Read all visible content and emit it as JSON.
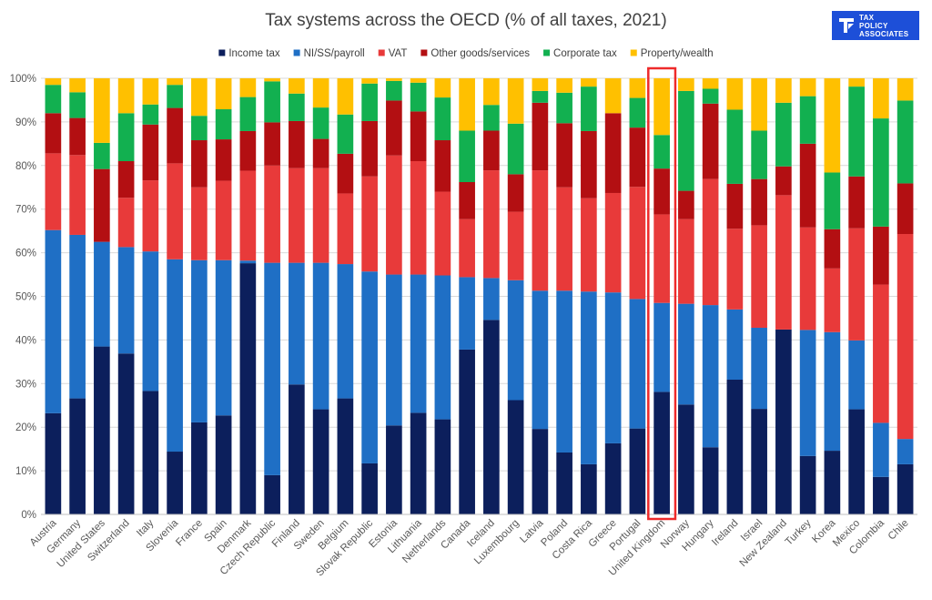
{
  "logo": {
    "line1": "TAX",
    "line2": "POLICY",
    "line3": "ASSOCIATES"
  },
  "colors": {
    "income": "#0c1f5c",
    "ni": "#1f6fc5",
    "vat": "#e83a3a",
    "other": "#b30f12",
    "corporate": "#12b050",
    "property": "#ffc000",
    "highlight": "#ee2a2a"
  },
  "chart_data": {
    "type": "bar",
    "stacked": true,
    "title": "Tax systems across the OECD (% of all taxes, 2021)",
    "xlabel": "",
    "ylabel": "",
    "ylim": [
      0,
      100
    ],
    "yticks": [
      "0%",
      "10%",
      "20%",
      "30%",
      "40%",
      "50%",
      "60%",
      "70%",
      "80%",
      "90%",
      "100%"
    ],
    "grid": true,
    "legend_position": "top",
    "highlighted_category": "United Kingdom",
    "categories": [
      "Austria",
      "Germany",
      "United States",
      "Switzerland",
      "Italy",
      "Slovenia",
      "France",
      "Spain",
      "Denmark",
      "Czech Republic",
      "Finland",
      "Sweden",
      "Belgium",
      "Slovak Republic",
      "Estonia",
      "Lithuania",
      "Netherlands",
      "Canada",
      "Iceland",
      "Luxembourg",
      "Latvia",
      "Poland",
      "Costa Rica",
      "Greece",
      "Portugal",
      "United Kingdom",
      "Norway",
      "Hungary",
      "Ireland",
      "Israel",
      "New Zealand",
      "Turkey",
      "Korea",
      "Mexico",
      "Colombia",
      "Chile"
    ],
    "series": [
      {
        "name": "Income tax",
        "color": "#0c1f5c",
        "values": [
          23.2,
          26.6,
          38.5,
          36.9,
          28.3,
          14.4,
          21.1,
          22.7,
          57.6,
          9.0,
          29.8,
          24.1,
          26.6,
          11.7,
          20.4,
          23.3,
          21.8,
          37.8,
          44.6,
          26.2,
          19.6,
          14.2,
          11.5,
          16.3,
          19.7,
          28.1,
          25.2,
          15.4,
          30.9,
          24.2,
          42.4,
          13.4,
          14.6,
          24.1,
          8.6,
          11.5
        ]
      },
      {
        "name": "NI/SS/payroll",
        "color": "#1f6fc5",
        "values": [
          42.0,
          37.5,
          24.0,
          24.4,
          32.0,
          44.1,
          37.2,
          35.6,
          0.6,
          48.7,
          27.9,
          33.6,
          30.8,
          44.0,
          34.6,
          31.7,
          33.0,
          16.6,
          9.6,
          27.5,
          31.7,
          37.1,
          39.6,
          34.6,
          29.7,
          20.4,
          23.1,
          32.6,
          16.1,
          18.6,
          0.0,
          28.9,
          27.2,
          15.8,
          12.4,
          5.8
        ]
      },
      {
        "name": "VAT",
        "color": "#e83a3a",
        "values": [
          17.6,
          18.3,
          0.0,
          11.3,
          16.3,
          22.0,
          16.7,
          18.2,
          20.6,
          22.3,
          21.7,
          21.7,
          16.2,
          21.8,
          27.3,
          26.0,
          19.2,
          13.3,
          24.7,
          15.7,
          27.6,
          23.7,
          21.4,
          22.8,
          25.7,
          20.3,
          19.4,
          28.9,
          18.5,
          23.5,
          30.8,
          23.5,
          14.6,
          25.7,
          31.7,
          47.0
        ]
      },
      {
        "name": "Other goods/services",
        "color": "#b30f12",
        "values": [
          9.2,
          8.5,
          16.7,
          8.4,
          12.8,
          12.7,
          10.8,
          9.5,
          9.1,
          9.9,
          10.8,
          6.7,
          9.1,
          12.7,
          12.6,
          11.4,
          11.8,
          8.5,
          9.1,
          8.6,
          15.5,
          14.7,
          15.4,
          18.3,
          13.6,
          10.5,
          6.5,
          17.3,
          10.3,
          10.6,
          6.6,
          19.2,
          9.0,
          11.9,
          13.3,
          11.6
        ]
      },
      {
        "name": "Corporate tax",
        "color": "#12b050",
        "values": [
          6.5,
          5.9,
          6.0,
          11.0,
          4.6,
          5.3,
          5.6,
          6.9,
          7.8,
          9.4,
          6.3,
          7.2,
          9.0,
          8.6,
          4.5,
          6.6,
          9.8,
          11.8,
          5.9,
          11.6,
          2.7,
          7.0,
          10.2,
          0.0,
          6.8,
          7.7,
          22.9,
          3.4,
          17.0,
          11.1,
          14.6,
          10.9,
          13.0,
          20.6,
          24.8,
          19.0
        ]
      },
      {
        "name": "Property/wealth",
        "color": "#ffc000",
        "values": [
          1.5,
          3.2,
          14.8,
          8.0,
          6.0,
          1.5,
          8.6,
          7.1,
          4.3,
          0.7,
          3.5,
          6.7,
          8.3,
          1.2,
          0.6,
          1.0,
          4.4,
          12.0,
          6.1,
          10.4,
          2.9,
          3.3,
          1.9,
          8.0,
          4.5,
          13.0,
          2.9,
          2.4,
          7.2,
          12.0,
          5.6,
          4.1,
          21.6,
          1.9,
          9.2,
          5.1
        ]
      }
    ]
  }
}
